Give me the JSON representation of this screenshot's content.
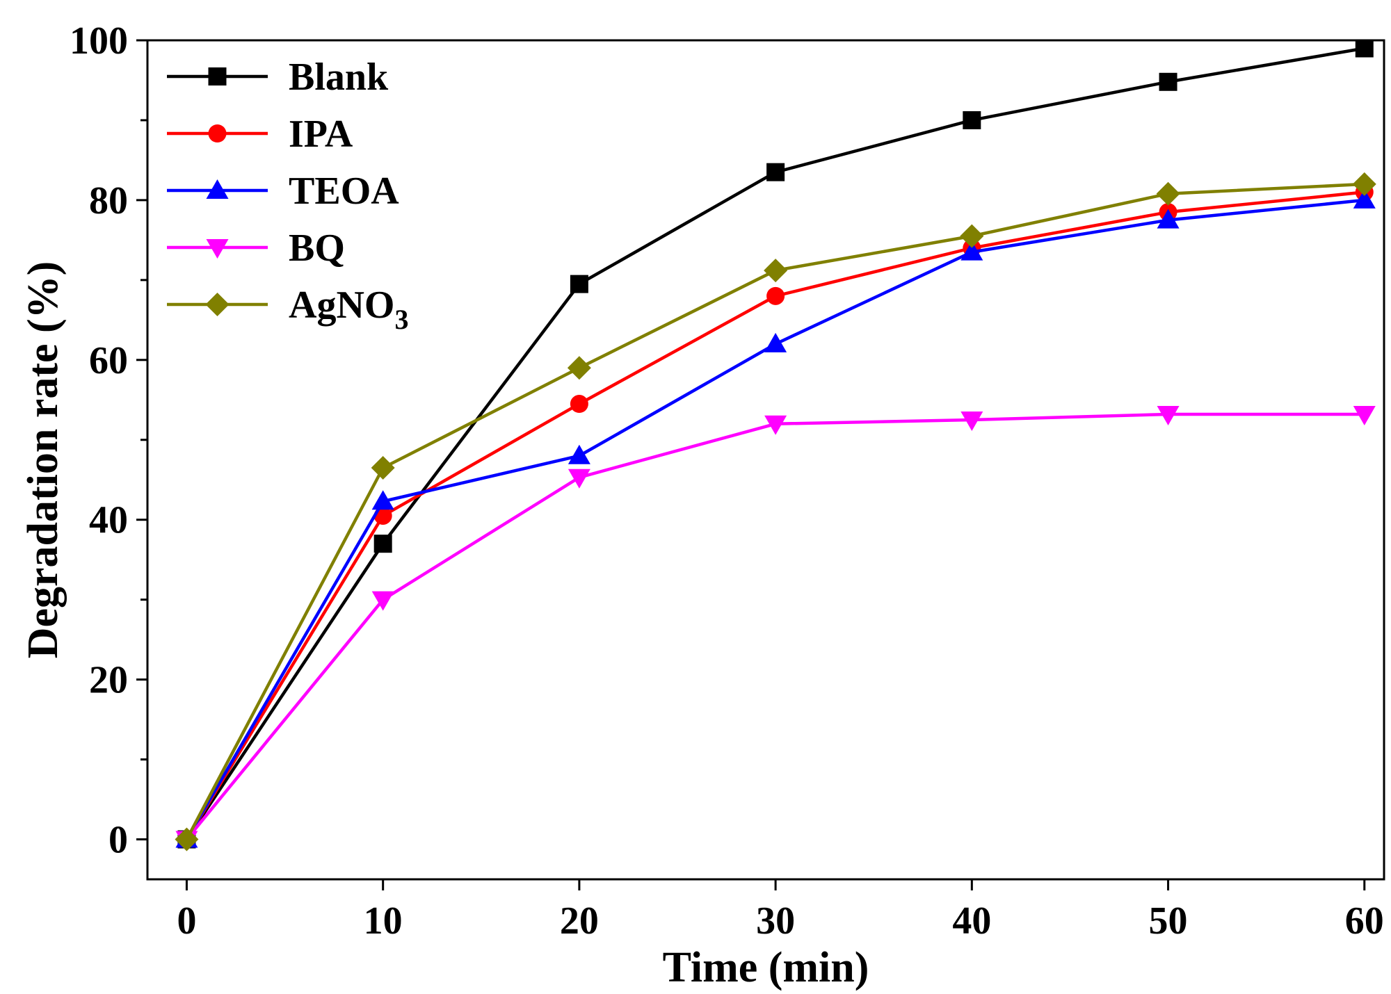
{
  "chart_data": {
    "type": "line",
    "title": "",
    "xlabel": "Time (min)",
    "ylabel": "Degradation rate (%)",
    "xlim": [
      -2,
      61
    ],
    "ylim": [
      -5,
      100
    ],
    "x_ticks": [
      0,
      10,
      20,
      30,
      40,
      50,
      60
    ],
    "y_ticks": [
      0,
      20,
      40,
      60,
      80,
      100
    ],
    "y_minor_ticks": [
      10,
      30,
      50,
      70,
      90
    ],
    "grid": false,
    "legend_position": "top-left",
    "x": [
      0,
      10,
      20,
      30,
      40,
      50,
      60
    ],
    "series": [
      {
        "name": "Blank",
        "name_sub": "",
        "color": "#000000",
        "marker": "square",
        "values": [
          0,
          37,
          69.5,
          83.5,
          90,
          94.8,
          99
        ]
      },
      {
        "name": "IPA",
        "name_sub": "",
        "color": "#ff0000",
        "marker": "circle",
        "values": [
          0,
          40.5,
          54.5,
          68,
          74,
          78.5,
          81
        ]
      },
      {
        "name": "TEOA",
        "name_sub": "",
        "color": "#0000ff",
        "marker": "triangle-up",
        "values": [
          0,
          42.3,
          48,
          62,
          73.5,
          77.5,
          80
        ]
      },
      {
        "name": "BQ",
        "name_sub": "",
        "color": "#ff00ff",
        "marker": "triangle-down",
        "values": [
          0,
          30,
          45.3,
          52,
          52.5,
          53.2,
          53.2
        ]
      },
      {
        "name": "AgNO",
        "name_sub": "3",
        "color": "#808000",
        "marker": "diamond",
        "values": [
          0,
          46.5,
          59,
          71.2,
          75.5,
          80.8,
          82
        ]
      }
    ]
  }
}
